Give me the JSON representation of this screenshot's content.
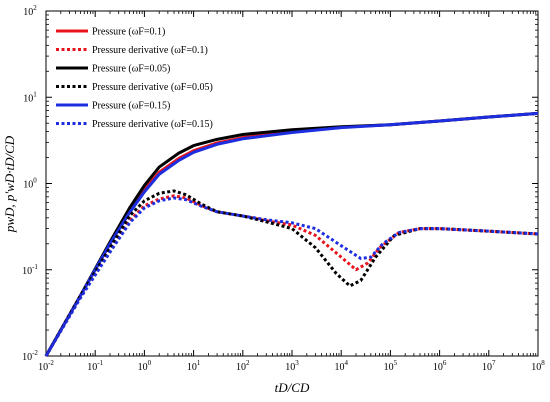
{
  "chart_data": {
    "type": "line",
    "xscale": "log",
    "yscale": "log",
    "xlim": [
      0.01,
      100000000
    ],
    "ylim": [
      0.01,
      100
    ],
    "x_ticks": [
      0.01,
      0.1,
      1,
      10,
      100,
      1000,
      10000,
      100000,
      1000000,
      10000000,
      100000000
    ],
    "y_ticks": [
      0.01,
      0.1,
      1,
      10,
      100
    ],
    "xlabel": "tD/CD",
    "ylabel": "pwD, p'wD·tD/CD",
    "grid": false,
    "legend_position": "top-left",
    "series": [
      {
        "name": "Pressure (ωF=0.1)",
        "color": "#e8141c",
        "style": "solid",
        "points": [
          [
            0.01,
            0.01
          ],
          [
            0.05,
            0.05
          ],
          [
            0.2,
            0.2
          ],
          [
            0.5,
            0.48
          ],
          [
            1,
            0.85
          ],
          [
            2,
            1.35
          ],
          [
            5,
            1.95
          ],
          [
            10,
            2.4
          ],
          [
            30,
            2.95
          ],
          [
            100,
            3.4
          ],
          [
            1000,
            4.0
          ],
          [
            10000,
            4.5
          ],
          [
            100000,
            4.8
          ],
          [
            1000000,
            5.3
          ],
          [
            10000000,
            5.9
          ],
          [
            100000000,
            6.5
          ]
        ]
      },
      {
        "name": "Pressure derivative (ωF=0.1)",
        "color": "#e8141c",
        "style": "dotted",
        "points": [
          [
            0.01,
            0.01
          ],
          [
            0.05,
            0.048
          ],
          [
            0.2,
            0.17
          ],
          [
            0.5,
            0.37
          ],
          [
            1,
            0.55
          ],
          [
            2,
            0.66
          ],
          [
            4,
            0.72
          ],
          [
            7,
            0.68
          ],
          [
            15,
            0.55
          ],
          [
            30,
            0.47
          ],
          [
            100,
            0.42
          ],
          [
            300,
            0.37
          ],
          [
            1000,
            0.33
          ],
          [
            3000,
            0.25
          ],
          [
            10000,
            0.14
          ],
          [
            20000,
            0.1
          ],
          [
            35000,
            0.12
          ],
          [
            60000,
            0.18
          ],
          [
            150000,
            0.27
          ],
          [
            400000,
            0.3
          ],
          [
            1000000,
            0.3
          ],
          [
            10000000,
            0.28
          ],
          [
            100000000,
            0.26
          ]
        ]
      },
      {
        "name": "Pressure (ωF=0.05)",
        "color": "#000000",
        "style": "solid",
        "points": [
          [
            0.01,
            0.01
          ],
          [
            0.05,
            0.05
          ],
          [
            0.2,
            0.21
          ],
          [
            0.5,
            0.52
          ],
          [
            1,
            0.95
          ],
          [
            2,
            1.55
          ],
          [
            5,
            2.25
          ],
          [
            10,
            2.75
          ],
          [
            30,
            3.25
          ],
          [
            100,
            3.7
          ],
          [
            1000,
            4.2
          ],
          [
            10000,
            4.55
          ],
          [
            100000,
            4.8
          ],
          [
            1000000,
            5.3
          ],
          [
            10000000,
            5.9
          ],
          [
            100000000,
            6.5
          ]
        ]
      },
      {
        "name": "Pressure derivative (ωF=0.05)",
        "color": "#000000",
        "style": "dotted",
        "points": [
          [
            0.01,
            0.01
          ],
          [
            0.05,
            0.05
          ],
          [
            0.2,
            0.18
          ],
          [
            0.5,
            0.42
          ],
          [
            1,
            0.63
          ],
          [
            2,
            0.77
          ],
          [
            4,
            0.82
          ],
          [
            7,
            0.74
          ],
          [
            15,
            0.57
          ],
          [
            30,
            0.47
          ],
          [
            100,
            0.42
          ],
          [
            300,
            0.36
          ],
          [
            1000,
            0.3
          ],
          [
            3000,
            0.18
          ],
          [
            8000,
            0.09
          ],
          [
            15000,
            0.065
          ],
          [
            25000,
            0.075
          ],
          [
            50000,
            0.14
          ],
          [
            120000,
            0.25
          ],
          [
            400000,
            0.3
          ],
          [
            1000000,
            0.3
          ],
          [
            10000000,
            0.28
          ],
          [
            100000000,
            0.26
          ]
        ]
      },
      {
        "name": "Pressure (ωF=0.15)",
        "color": "#1c2ee0",
        "style": "solid",
        "points": [
          [
            0.01,
            0.01
          ],
          [
            0.05,
            0.05
          ],
          [
            0.2,
            0.2
          ],
          [
            0.5,
            0.46
          ],
          [
            1,
            0.8
          ],
          [
            2,
            1.28
          ],
          [
            5,
            1.85
          ],
          [
            10,
            2.3
          ],
          [
            30,
            2.85
          ],
          [
            100,
            3.3
          ],
          [
            1000,
            3.9
          ],
          [
            10000,
            4.45
          ],
          [
            100000,
            4.8
          ],
          [
            1000000,
            5.3
          ],
          [
            10000000,
            5.9
          ],
          [
            100000000,
            6.5
          ]
        ]
      },
      {
        "name": "Pressure derivative (ωF=0.15)",
        "color": "#1c2ee0",
        "style": "dotted",
        "points": [
          [
            0.01,
            0.01
          ],
          [
            0.05,
            0.047
          ],
          [
            0.2,
            0.16
          ],
          [
            0.5,
            0.35
          ],
          [
            1,
            0.52
          ],
          [
            2,
            0.63
          ],
          [
            4,
            0.68
          ],
          [
            7,
            0.65
          ],
          [
            15,
            0.54
          ],
          [
            30,
            0.47
          ],
          [
            100,
            0.42
          ],
          [
            300,
            0.38
          ],
          [
            1000,
            0.35
          ],
          [
            3000,
            0.3
          ],
          [
            10000,
            0.19
          ],
          [
            25000,
            0.135
          ],
          [
            40000,
            0.14
          ],
          [
            70000,
            0.2
          ],
          [
            150000,
            0.27
          ],
          [
            400000,
            0.3
          ],
          [
            1000000,
            0.3
          ],
          [
            10000000,
            0.28
          ],
          [
            100000000,
            0.26
          ]
        ]
      }
    ]
  }
}
